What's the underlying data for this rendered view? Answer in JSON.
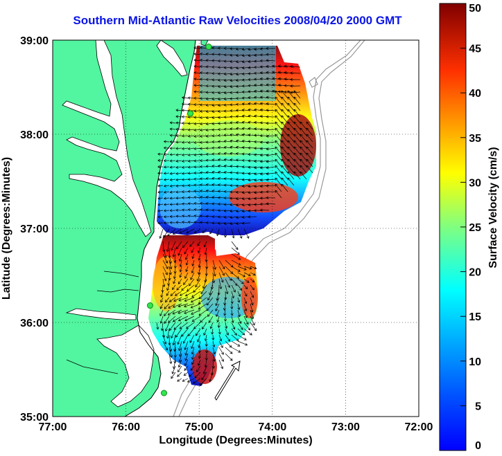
{
  "title": "Southern Mid-Atlantic Raw Velocities 2008/04/20 2000 GMT",
  "axes": {
    "xlabel": "Longitude (Degrees:Minutes)",
    "ylabel": "Latitude (Degrees:Minutes)",
    "xticks": [
      "77:00",
      "76:00",
      "75:00",
      "74:00",
      "73:00",
      "72:00"
    ],
    "yticks": [
      "39:00",
      "38:00",
      "37:00",
      "36:00",
      "35:00"
    ],
    "xlim": [
      -77,
      -72
    ],
    "ylim": [
      35,
      39
    ]
  },
  "colorbar": {
    "label": "Surface Velocity (cm/s)",
    "ticks": [
      "50",
      "45",
      "40",
      "35",
      "30",
      "25",
      "20",
      "15",
      "10",
      "5",
      "0"
    ],
    "range": [
      0,
      50
    ],
    "colormap": "jet"
  },
  "colors": {
    "land": "#52f5a0",
    "water": "#ffffff",
    "title": "#0a14e6",
    "station": "#33e64d",
    "bathymetry": "#999999"
  },
  "stations": [
    {
      "lon": -74.87,
      "lat": 38.93
    },
    {
      "lon": -75.12,
      "lat": 38.22
    },
    {
      "lon": -75.67,
      "lat": 36.18
    },
    {
      "lon": -75.48,
      "lat": 35.25
    }
  ],
  "grid": "dotted"
}
